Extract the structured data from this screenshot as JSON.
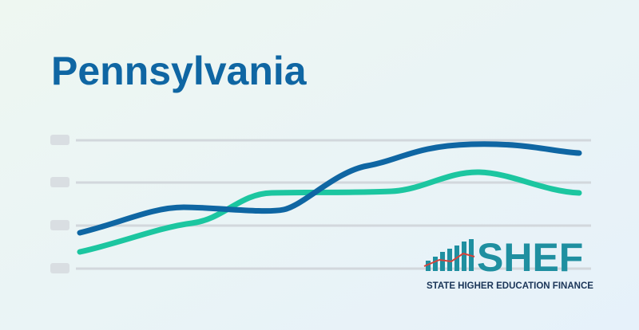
{
  "title": "Pennsylvania",
  "logo": {
    "name": "SHEF",
    "tagline": "STATE HIGHER EDUCATION FINANCE"
  }
}
